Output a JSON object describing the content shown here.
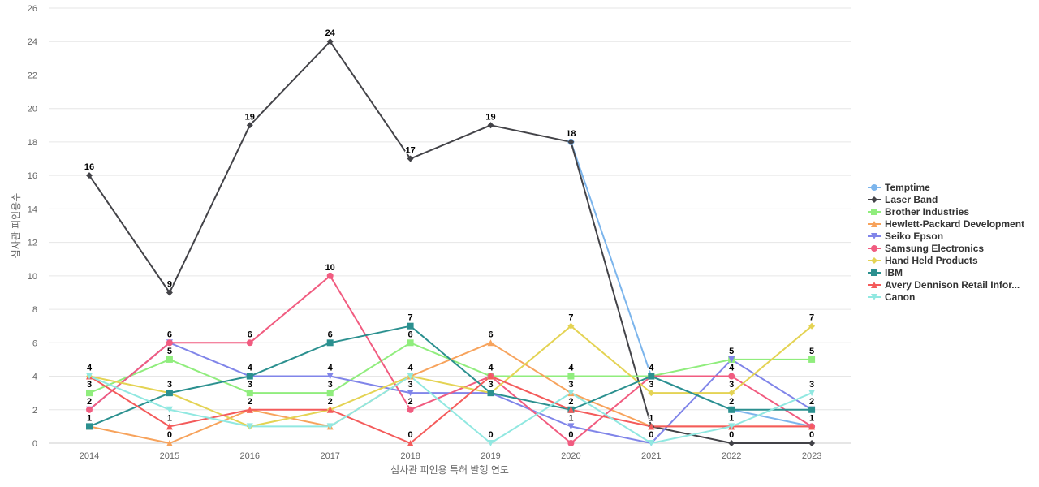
{
  "chart_data": {
    "type": "line",
    "title": "",
    "xlabel": "심사관 피인용 특허 발행 연도",
    "ylabel": "심사관 피인용수",
    "x": [
      "2014",
      "2015",
      "2016",
      "2017",
      "2018",
      "2019",
      "2020",
      "2021",
      "2022",
      "2023"
    ],
    "ylim": [
      0,
      26
    ],
    "yticks": [
      0,
      2,
      4,
      6,
      8,
      10,
      12,
      14,
      16,
      18,
      20,
      22,
      24,
      26
    ],
    "grid": true,
    "legend_position": "right",
    "series": [
      {
        "name": "Temptime",
        "color": "#7cb5ec",
        "marker": "circle",
        "values": [
          null,
          null,
          null,
          null,
          null,
          null,
          18,
          4,
          2,
          1
        ],
        "labels": [
          false,
          false,
          false,
          false,
          false,
          false,
          false,
          false,
          false,
          false
        ]
      },
      {
        "name": "Laser Band",
        "color": "#434348",
        "marker": "diamond",
        "values": [
          16,
          9,
          19,
          24,
          17,
          19,
          18,
          1,
          0,
          0
        ],
        "labels": [
          true,
          true,
          true,
          true,
          true,
          true,
          true,
          true,
          true,
          true
        ]
      },
      {
        "name": "Brother Industries",
        "color": "#90ed7d",
        "marker": "square",
        "values": [
          3,
          5,
          3,
          3,
          6,
          4,
          4,
          4,
          5,
          5
        ],
        "labels": [
          true,
          true,
          true,
          true,
          true,
          true,
          true,
          true,
          true,
          true
        ]
      },
      {
        "name": "Hewlett-Packard Development",
        "color": "#f7a35c",
        "marker": "triangle",
        "values": [
          1,
          0,
          2,
          1,
          4,
          6,
          3,
          1,
          1,
          1
        ],
        "labels": [
          true,
          true,
          false,
          false,
          true,
          true,
          true,
          false,
          false,
          false
        ]
      },
      {
        "name": "Seiko Epson",
        "color": "#8085e9",
        "marker": "triangle-down",
        "values": [
          2,
          6,
          4,
          4,
          3,
          3,
          1,
          0,
          5,
          2
        ],
        "labels": [
          true,
          true,
          true,
          true,
          true,
          true,
          true,
          true,
          true,
          true
        ]
      },
      {
        "name": "Samsung Electronics",
        "color": "#f15c80",
        "marker": "circle",
        "values": [
          2,
          6,
          6,
          10,
          2,
          4,
          0,
          4,
          4,
          1
        ],
        "labels": [
          true,
          true,
          true,
          true,
          true,
          false,
          true,
          false,
          true,
          false
        ]
      },
      {
        "name": "Hand Held Products",
        "color": "#e4d354",
        "marker": "diamond",
        "values": [
          4,
          3,
          1,
          2,
          4,
          3,
          7,
          3,
          3,
          7
        ],
        "labels": [
          true,
          false,
          false,
          true,
          false,
          true,
          true,
          true,
          true,
          true
        ]
      },
      {
        "name": "IBM",
        "color": "#2b908f",
        "marker": "square",
        "values": [
          1,
          3,
          4,
          6,
          7,
          3,
          2,
          4,
          2,
          2
        ],
        "labels": [
          true,
          true,
          true,
          true,
          true,
          false,
          true,
          true,
          true,
          true
        ]
      },
      {
        "name": "Avery Dennison Retail Infor...",
        "color": "#f45b5b",
        "marker": "triangle",
        "values": [
          4,
          1,
          2,
          2,
          0,
          4,
          2,
          1,
          1,
          1
        ],
        "labels": [
          false,
          true,
          true,
          false,
          true,
          true,
          false,
          true,
          false,
          true
        ]
      },
      {
        "name": "Canon",
        "color": "#91e8e1",
        "marker": "triangle-down",
        "values": [
          4,
          2,
          1,
          1,
          4,
          0,
          3,
          0,
          1,
          3
        ],
        "labels": [
          false,
          false,
          false,
          false,
          false,
          true,
          false,
          false,
          true,
          true
        ]
      }
    ]
  }
}
